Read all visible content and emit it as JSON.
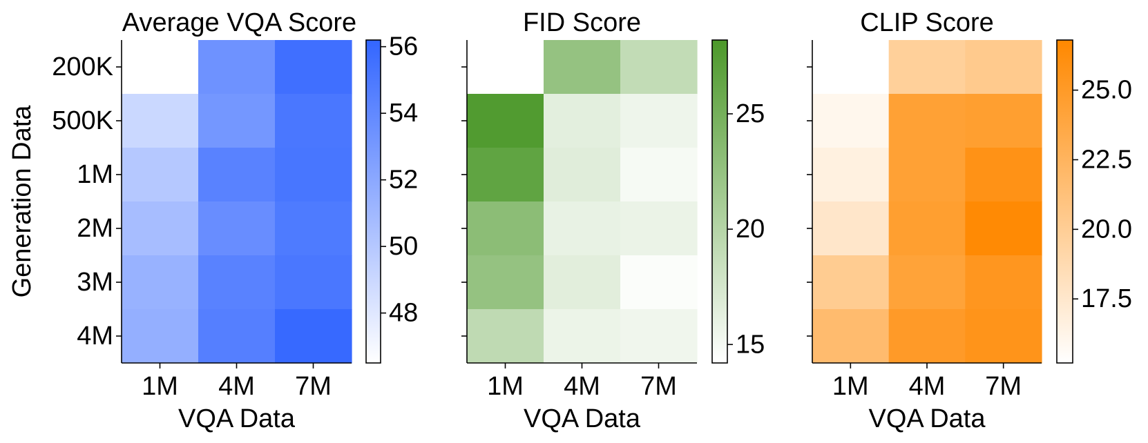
{
  "chart_data": [
    {
      "type": "heatmap",
      "title": "Average VQA Score",
      "xlabel": "VQA Data",
      "ylabel": "Generation Data",
      "x": [
        "1M",
        "4M",
        "7M"
      ],
      "y": [
        "200K",
        "500K",
        "1M",
        "2M",
        "3M",
        "4M"
      ],
      "values": [
        [
          null,
          53.4,
          55.6
        ],
        [
          49.0,
          53.1,
          55.1
        ],
        [
          50.0,
          54.4,
          55.2
        ],
        [
          50.7,
          53.7,
          54.9
        ],
        [
          51.4,
          54.4,
          55.1
        ],
        [
          51.6,
          54.6,
          56.0
        ]
      ],
      "colorbar": {
        "vmin": 46.5,
        "vmax": 56.2,
        "ticks": [
          48,
          50,
          52,
          54,
          56
        ],
        "tick_labels": [
          "48",
          "50",
          "52",
          "54",
          "56"
        ],
        "color_low": "#ffffff",
        "color_high": "#3366ff"
      }
    },
    {
      "type": "heatmap",
      "title": "FID Score",
      "xlabel": "VQA Data",
      "ylabel": "",
      "x": [
        "1M",
        "4M",
        "7M"
      ],
      "y": [
        "200K",
        "500K",
        "1M",
        "2M",
        "3M",
        "4M"
      ],
      "values": [
        [
          null,
          22.5,
          19.0
        ],
        [
          27.8,
          16.4,
          15.5
        ],
        [
          26.6,
          16.6,
          14.9
        ],
        [
          23.2,
          16.0,
          15.8
        ],
        [
          22.5,
          16.5,
          14.5
        ],
        [
          19.2,
          15.7,
          15.4
        ]
      ],
      "colorbar": {
        "vmin": 14.2,
        "vmax": 28.2,
        "ticks": [
          15,
          20,
          25
        ],
        "tick_labels": [
          "15",
          "20",
          "25"
        ],
        "color_low": "#ffffff",
        "color_high": "#4c982a"
      }
    },
    {
      "type": "heatmap",
      "title": "CLIP Score",
      "xlabel": "VQA Data",
      "ylabel": "",
      "x": [
        "1M",
        "4M",
        "7M"
      ],
      "y": [
        "200K",
        "500K",
        "1M",
        "2M",
        "3M",
        "4M"
      ],
      "values": [
        [
          null,
          19.8,
          20.4
        ],
        [
          16.0,
          24.4,
          24.6
        ],
        [
          16.6,
          24.4,
          25.8
        ],
        [
          17.6,
          24.6,
          26.6
        ],
        [
          20.2,
          24.2,
          25.4
        ],
        [
          21.8,
          25.0,
          25.6
        ]
      ],
      "colorbar": {
        "vmin": 15.2,
        "vmax": 26.8,
        "ticks": [
          17.5,
          20.0,
          22.5,
          25.0
        ],
        "tick_labels": [
          "17.5",
          "20.0",
          "22.5",
          "25.0"
        ],
        "color_low": "#ffffff",
        "color_high": "#ff8800"
      }
    }
  ]
}
